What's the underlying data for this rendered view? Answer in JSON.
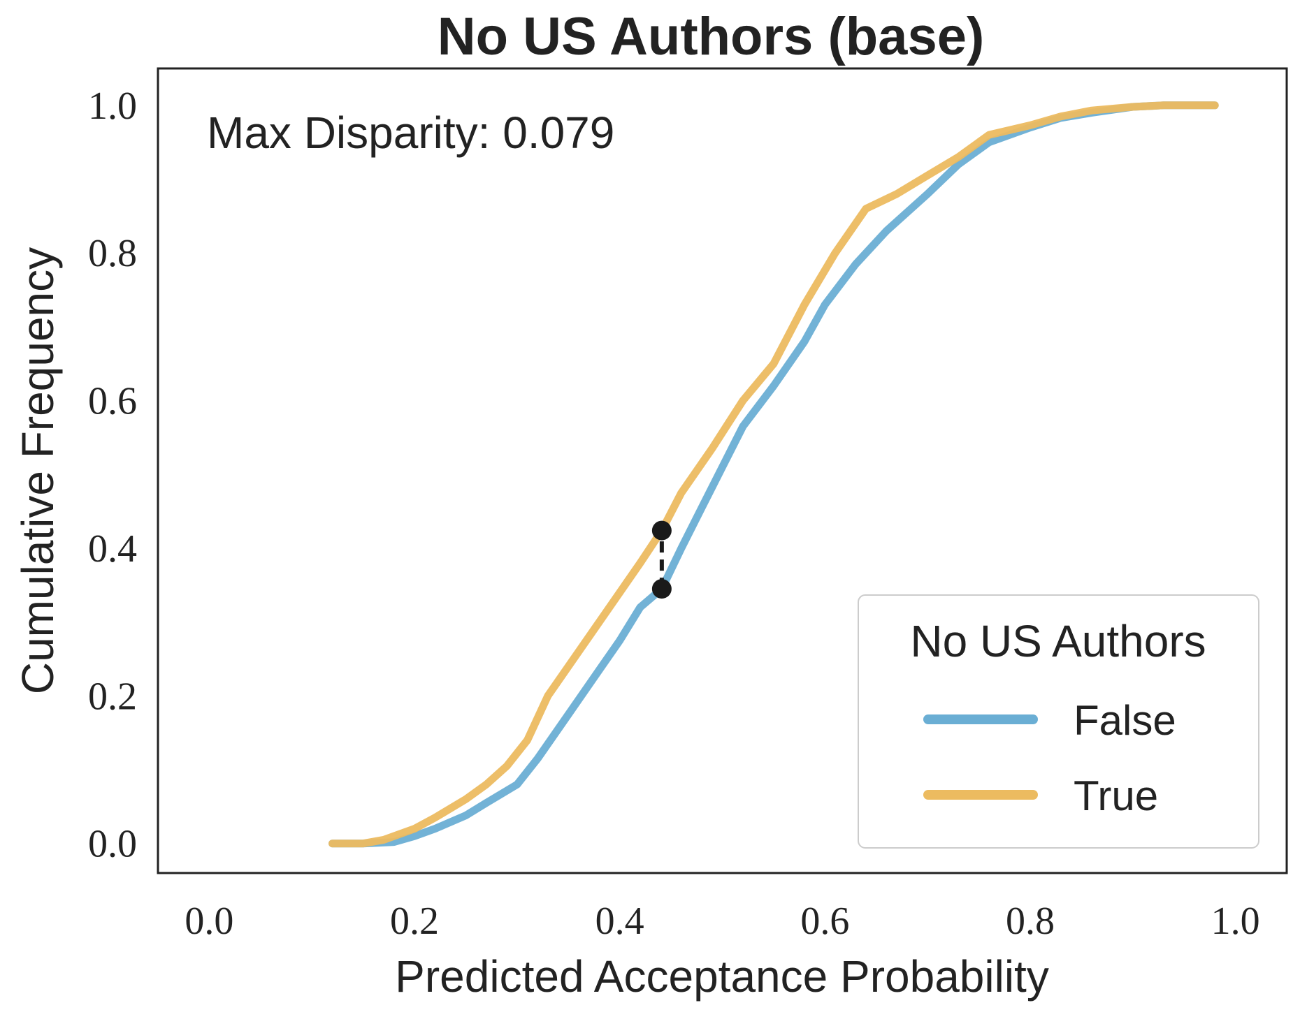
{
  "chart_data": {
    "type": "line",
    "title": "No US Authors (base)",
    "xlabel": "Predicted Acceptance Probability",
    "ylabel": "Cumulative Frequency",
    "xlim": [
      -0.05,
      1.05
    ],
    "ylim": [
      -0.04,
      1.05
    ],
    "xticks": [
      0.0,
      0.2,
      0.4,
      0.6,
      0.8,
      1.0
    ],
    "xtick_labels": [
      "0.0",
      "0.2",
      "0.4",
      "0.6",
      "0.8",
      "1.0"
    ],
    "yticks": [
      0.0,
      0.2,
      0.4,
      0.6,
      0.8,
      1.0
    ],
    "ytick_labels": [
      "0.0",
      "0.2",
      "0.4",
      "0.6",
      "0.8",
      "1.0"
    ],
    "grid": false,
    "annotation": "Max Disparity: 0.079",
    "legend": {
      "title": "No US Authors",
      "position": "bottom-right"
    },
    "disparity": {
      "x": 0.441,
      "y_low": 0.345,
      "y_high": 0.424
    },
    "series": [
      {
        "name": "False",
        "color": "#6aaed4",
        "x": [
          0.12,
          0.15,
          0.18,
          0.2,
          0.22,
          0.25,
          0.27,
          0.3,
          0.32,
          0.35,
          0.38,
          0.4,
          0.42,
          0.441,
          0.46,
          0.48,
          0.5,
          0.52,
          0.55,
          0.58,
          0.6,
          0.63,
          0.66,
          0.7,
          0.73,
          0.76,
          0.8,
          0.83,
          0.86,
          0.9,
          0.93,
          0.98
        ],
        "y": [
          0.0,
          0.0,
          0.002,
          0.01,
          0.02,
          0.038,
          0.055,
          0.08,
          0.115,
          0.175,
          0.235,
          0.275,
          0.32,
          0.345,
          0.4,
          0.455,
          0.51,
          0.565,
          0.62,
          0.68,
          0.73,
          0.785,
          0.83,
          0.88,
          0.92,
          0.95,
          0.97,
          0.983,
          0.99,
          0.998,
          1.0,
          1.0
        ]
      },
      {
        "name": "True",
        "color": "#ecbb60",
        "x": [
          0.12,
          0.15,
          0.17,
          0.2,
          0.22,
          0.25,
          0.27,
          0.29,
          0.31,
          0.33,
          0.36,
          0.38,
          0.4,
          0.42,
          0.441,
          0.46,
          0.49,
          0.52,
          0.55,
          0.58,
          0.61,
          0.64,
          0.67,
          0.7,
          0.73,
          0.76,
          0.8,
          0.83,
          0.86,
          0.9,
          0.93,
          0.98
        ],
        "y": [
          0.0,
          0.0,
          0.005,
          0.02,
          0.035,
          0.06,
          0.08,
          0.105,
          0.14,
          0.2,
          0.26,
          0.3,
          0.34,
          0.38,
          0.424,
          0.475,
          0.535,
          0.6,
          0.65,
          0.73,
          0.8,
          0.86,
          0.88,
          0.905,
          0.93,
          0.96,
          0.973,
          0.985,
          0.993,
          0.998,
          1.0,
          1.0
        ]
      }
    ]
  }
}
